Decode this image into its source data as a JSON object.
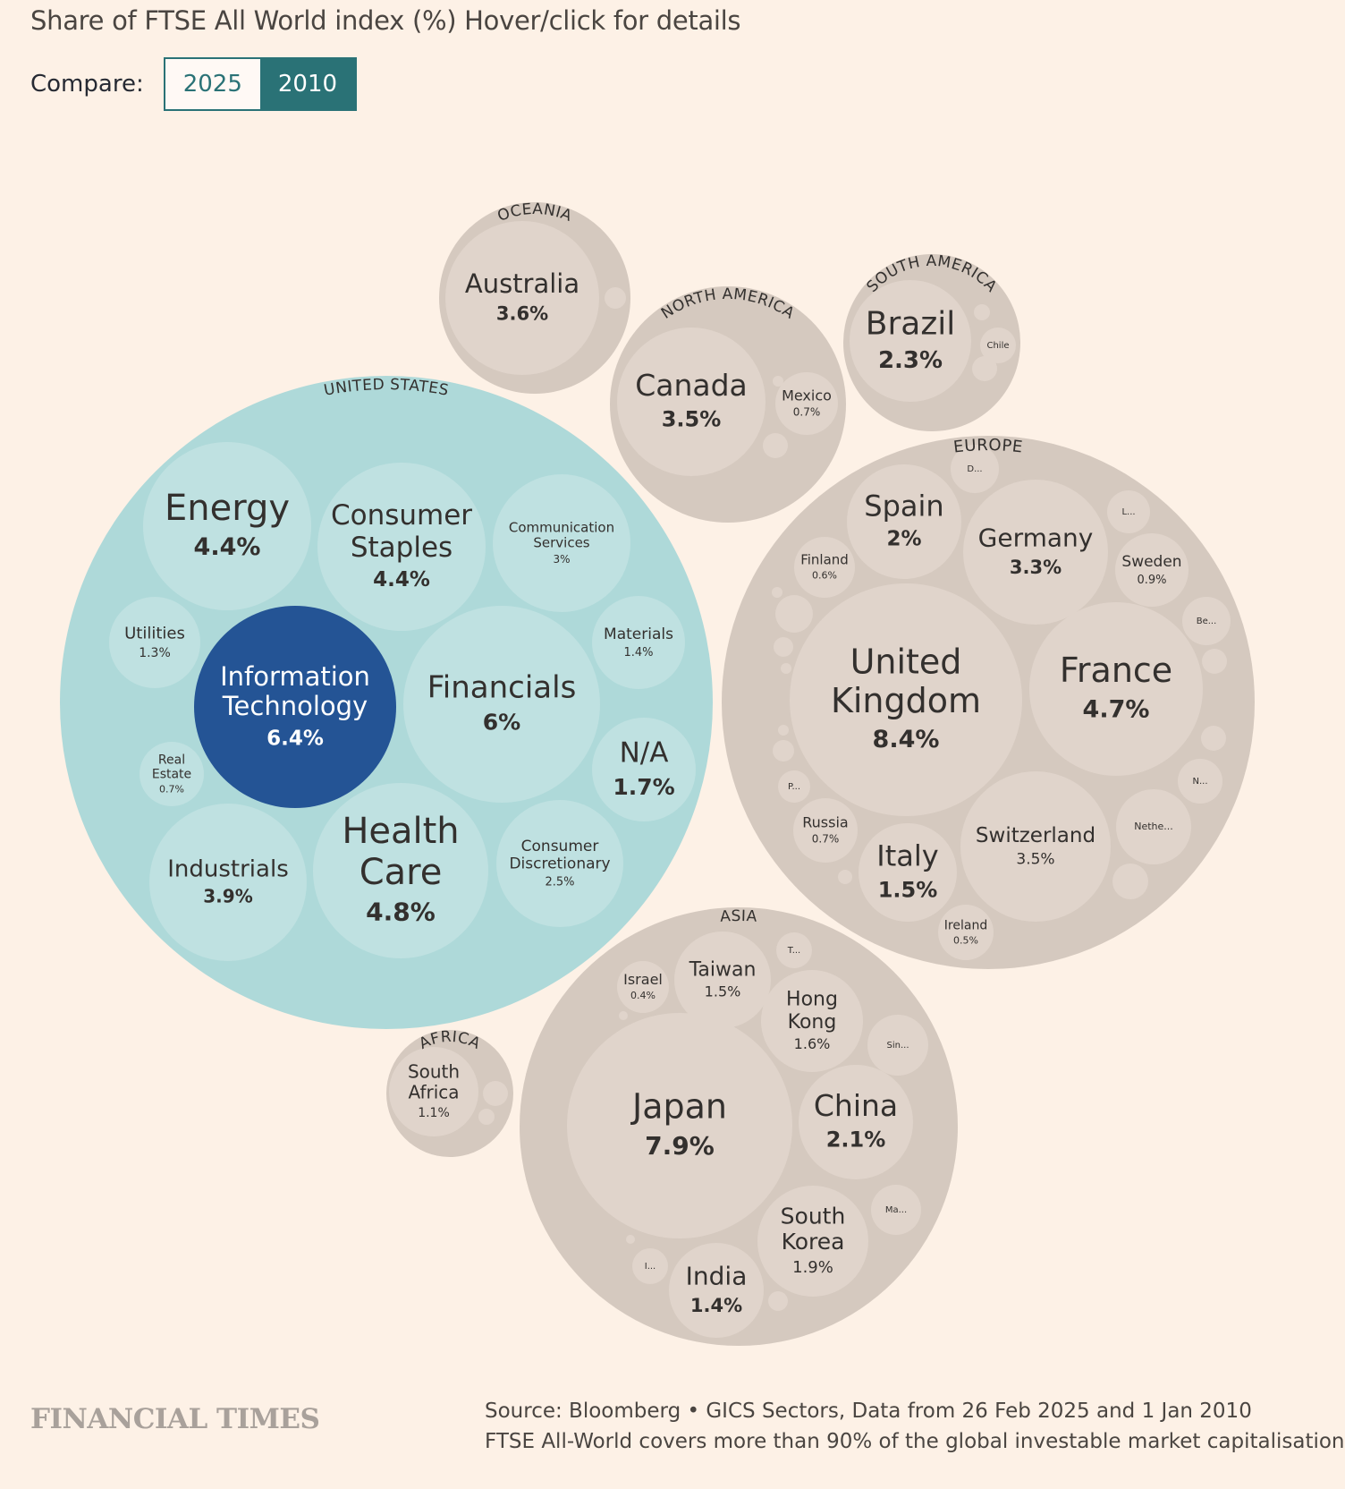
{
  "header": {
    "title": "Share of FTSE All World index (%) Hover/click for details"
  },
  "compare": {
    "label": "Compare:",
    "options": [
      "2025",
      "2010"
    ],
    "selected": "2010"
  },
  "footer": {
    "logo": "FINANCIAL TIMES",
    "source_line1": "Source: Bloomberg • GICS Sectors, Data from 26 Feb 2025 and 1 Jan 2010",
    "source_line2": "FTSE All-World covers more than 90% of the global investable market capitalisation"
  },
  "colors": {
    "background": "#fdf1e6",
    "us_region": "#aed9d9",
    "us_sector": "#bfe1e1",
    "highlight": "#245495",
    "region": "#d5c9bf",
    "country": "#e0d4cb",
    "accent": "#2a7276"
  },
  "chart_data": {
    "type": "packed-bubble",
    "unit": "%",
    "regions": [
      {
        "name": "UNITED STATES",
        "children": [
          {
            "name": "Information Technology",
            "value": 6.4,
            "highlighted": true
          },
          {
            "name": "Financials",
            "value": 6
          },
          {
            "name": "Health Care",
            "value": 4.8
          },
          {
            "name": "Energy",
            "value": 4.4
          },
          {
            "name": "Consumer Staples",
            "value": 4.4
          },
          {
            "name": "Industrials",
            "value": 3.9
          },
          {
            "name": "Communication Services",
            "value": 3
          },
          {
            "name": "Consumer Discretionary",
            "value": 2.5
          },
          {
            "name": "N/A",
            "value": 1.7
          },
          {
            "name": "Materials",
            "value": 1.4
          },
          {
            "name": "Utilities",
            "value": 1.3
          },
          {
            "name": "Real Estate",
            "value": 0.7
          }
        ]
      },
      {
        "name": "OCEANIA",
        "children": [
          {
            "name": "Australia",
            "value": 3.6
          }
        ]
      },
      {
        "name": "NORTH AMERICA",
        "children": [
          {
            "name": "Canada",
            "value": 3.5
          },
          {
            "name": "Mexico",
            "value": 0.7
          }
        ]
      },
      {
        "name": "SOUTH AMERICA",
        "children": [
          {
            "name": "Brazil",
            "value": 2.3
          },
          {
            "name": "Chile",
            "value": null
          }
        ]
      },
      {
        "name": "EUROPE",
        "children": [
          {
            "name": "United Kingdom",
            "value": 8.4
          },
          {
            "name": "France",
            "value": 4.7
          },
          {
            "name": "Switzerland",
            "value": 3.5
          },
          {
            "name": "Germany",
            "value": 3.3
          },
          {
            "name": "Spain",
            "value": 2
          },
          {
            "name": "Italy",
            "value": 1.5
          },
          {
            "name": "Sweden",
            "value": 0.9
          },
          {
            "name": "Russia",
            "value": 0.7
          },
          {
            "name": "Finland",
            "value": 0.6
          },
          {
            "name": "Ireland",
            "value": 0.5
          },
          {
            "name": "Nethe...",
            "value": null
          },
          {
            "name": "Be...",
            "value": null
          },
          {
            "name": "N...",
            "value": null
          },
          {
            "name": "L...",
            "value": null
          },
          {
            "name": "D...",
            "value": null
          },
          {
            "name": "P...",
            "value": null
          }
        ]
      },
      {
        "name": "ASIA",
        "children": [
          {
            "name": "Japan",
            "value": 7.9
          },
          {
            "name": "China",
            "value": 2.1
          },
          {
            "name": "South Korea",
            "value": 1.9
          },
          {
            "name": "Hong Kong",
            "value": 1.6
          },
          {
            "name": "Taiwan",
            "value": 1.5
          },
          {
            "name": "India",
            "value": 1.4
          },
          {
            "name": "Israel",
            "value": 0.4
          },
          {
            "name": "Sin...",
            "value": null
          },
          {
            "name": "Ma...",
            "value": null
          },
          {
            "name": "T...",
            "value": null
          },
          {
            "name": "I...",
            "value": null
          }
        ]
      },
      {
        "name": "AFRICA",
        "children": [
          {
            "name": "South Africa",
            "value": 1.1
          }
        ]
      }
    ]
  }
}
